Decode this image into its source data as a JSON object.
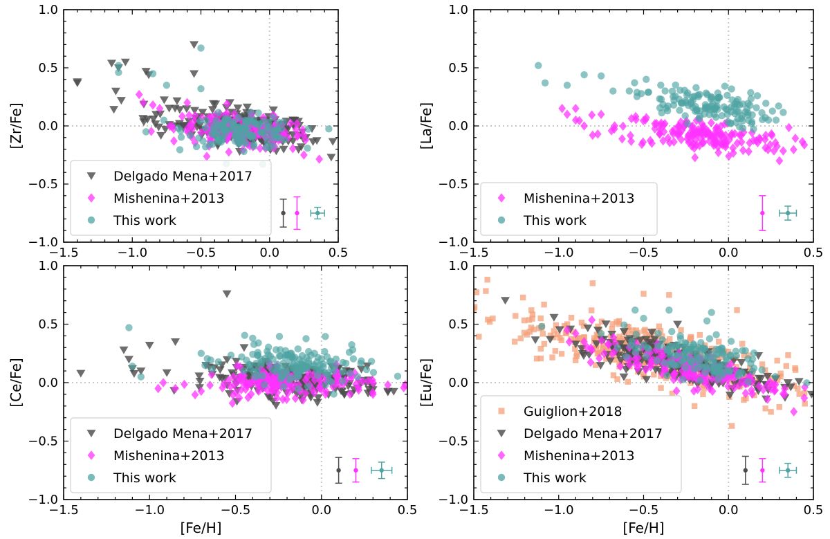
{
  "styles": {
    "guiglion": {
      "color": "#f4a07a",
      "marker": "square"
    },
    "delgado": {
      "color": "#4d4d4d",
      "marker": "triangle-down"
    },
    "mishenina": {
      "color": "#ff33ff",
      "marker": "diamond"
    },
    "thiswork": {
      "color": "#4fa3a3",
      "marker": "circle"
    }
  },
  "chart_data": [
    {
      "id": "zr",
      "type": "scatter",
      "ylabel": "[Zr/Fe]",
      "xlabel": "",
      "xlim": [
        -1.5,
        0.5
      ],
      "ylim": [
        -1.0,
        1.0
      ],
      "xticks": [
        -1.5,
        -1.0,
        -0.5,
        0.0,
        0.5
      ],
      "xtick_labels": [
        "−1.5",
        "−1.0",
        "−0.5",
        "0.0",
        "0.5"
      ],
      "yticks": [
        -1.0,
        -0.5,
        0.0,
        0.5,
        1.0
      ],
      "ytick_labels": [
        "−1.0",
        "−0.5",
        "0.0",
        "0.5",
        "1.0"
      ],
      "legend": {
        "position": "lower-left",
        "entries": [
          "Delgado Mena+2017",
          "Mishenina+2013",
          "This work"
        ],
        "keys": [
          "delgado",
          "mishenina",
          "thiswork"
        ]
      },
      "error_bars": [
        {
          "series": "delgado",
          "x": 0.1,
          "y": -0.75,
          "yerr": 0.12,
          "xerr": 0.0
        },
        {
          "series": "mishenina",
          "x": 0.2,
          "y": -0.75,
          "yerr": 0.14,
          "xerr": 0.0
        },
        {
          "series": "thiswork",
          "x": 0.35,
          "y": -0.75,
          "yerr": 0.05,
          "xerr": 0.05
        }
      ],
      "series": [
        {
          "name": "Delgado Mena+2017",
          "key": "delgado",
          "clusters": [
            {
              "n": 230,
              "cx": -0.15,
              "cy": -0.02,
              "sx": 0.22,
              "sy": 0.08,
              "slope": -0.15
            },
            {
              "n": 25,
              "cx": -0.7,
              "cy": 0.08,
              "sx": 0.15,
              "sy": 0.08,
              "slope": -0.1
            }
          ],
          "points": [
            [
              -1.4,
              0.38
            ],
            [
              -1.4,
              0.37
            ],
            [
              -1.15,
              0.54
            ],
            [
              -1.1,
              0.5
            ],
            [
              -1.05,
              0.55
            ],
            [
              -0.9,
              0.47
            ],
            [
              -0.55,
              0.7
            ],
            [
              -1.12,
              0.3
            ],
            [
              -1.08,
              0.22
            ],
            [
              -0.55,
              0.45
            ],
            [
              -0.88,
              0.44
            ]
          ]
        },
        {
          "name": "Mishenina+2013",
          "key": "mishenina",
          "clusters": [
            {
              "n": 170,
              "cx": -0.2,
              "cy": -0.05,
              "sx": 0.25,
              "sy": 0.07,
              "slope": -0.1
            }
          ],
          "points": [
            [
              -0.95,
              0.27
            ],
            [
              -0.92,
              0.2
            ],
            [
              -0.85,
              0.18
            ],
            [
              -0.8,
              0.15
            ],
            [
              -0.6,
              0.2
            ],
            [
              0.25,
              -0.25
            ]
          ]
        },
        {
          "name": "This work",
          "key": "thiswork",
          "clusters": [
            {
              "n": 130,
              "cx": -0.2,
              "cy": -0.05,
              "sx": 0.2,
              "sy": 0.07,
              "slope": -0.05
            }
          ],
          "points": [
            [
              -1.1,
              0.52
            ],
            [
              -1.1,
              0.46
            ],
            [
              -0.5,
              0.67
            ],
            [
              -0.85,
              0.45
            ],
            [
              -0.75,
              0.35
            ],
            [
              -0.5,
              0.32
            ],
            [
              -0.9,
              -0.05
            ],
            [
              -0.05,
              -0.33
            ]
          ]
        }
      ]
    },
    {
      "id": "la",
      "type": "scatter",
      "ylabel": "[La/Fe]",
      "xlabel": "",
      "xlim": [
        -1.5,
        0.5
      ],
      "ylim": [
        -1.0,
        1.0
      ],
      "xticks": [
        -1.5,
        -1.0,
        -0.5,
        0.0,
        0.5
      ],
      "xtick_labels": [
        "−1.5",
        "−1.0",
        "−0.5",
        "0.0",
        "0.5"
      ],
      "yticks": [
        -1.0,
        -0.5,
        0.0,
        0.5,
        1.0
      ],
      "ytick_labels": [
        "−1.0",
        "−0.5",
        "0.0",
        "0.5",
        "1.0"
      ],
      "legend": {
        "position": "lower-left",
        "entries": [
          "Mishenina+2013",
          "This work"
        ],
        "keys": [
          "mishenina",
          "thiswork"
        ]
      },
      "error_bars": [
        {
          "series": "mishenina",
          "x": 0.2,
          "y": -0.75,
          "yerr": 0.15,
          "xerr": 0.0
        },
        {
          "series": "thiswork",
          "x": 0.35,
          "y": -0.75,
          "yerr": 0.06,
          "xerr": 0.05
        }
      ],
      "series": [
        {
          "name": "Mishenina+2013",
          "key": "mishenina",
          "clusters": [
            {
              "n": 170,
              "cx": -0.15,
              "cy": -0.08,
              "sx": 0.25,
              "sy": 0.07,
              "slope": -0.15
            }
          ],
          "points": [
            [
              -0.98,
              0.15
            ],
            [
              -0.95,
              0.1
            ],
            [
              -0.9,
              0.05
            ],
            [
              -0.85,
              0.0
            ],
            [
              -0.8,
              -0.08
            ],
            [
              -0.9,
              0.15
            ],
            [
              -0.75,
              0.1
            ],
            [
              0.3,
              -0.3
            ]
          ]
        },
        {
          "name": "This work",
          "key": "thiswork",
          "clusters": [
            {
              "n": 140,
              "cx": -0.15,
              "cy": 0.18,
              "sx": 0.2,
              "sy": 0.08,
              "slope": -0.2
            }
          ],
          "points": [
            [
              -1.12,
              0.52
            ],
            [
              -1.08,
              0.37
            ],
            [
              -0.85,
              0.44
            ],
            [
              -0.75,
              0.43
            ],
            [
              -0.95,
              0.35
            ],
            [
              -0.68,
              0.3
            ],
            [
              0.28,
              0.05
            ]
          ]
        }
      ]
    },
    {
      "id": "ce",
      "type": "scatter",
      "ylabel": "[Ce/Fe]",
      "xlabel": "[Fe/H]",
      "xlim": [
        -1.5,
        0.5
      ],
      "ylim": [
        -1.0,
        1.0
      ],
      "xticks": [
        -1.5,
        -1.0,
        -0.5,
        0.0,
        0.5
      ],
      "xtick_labels": [
        "−1.5",
        "−1.0",
        "−0.5",
        "0.0",
        "0.5"
      ],
      "yticks": [
        -1.0,
        -0.5,
        0.0,
        0.5,
        1.0
      ],
      "ytick_labels": [
        "−1.0",
        "−0.5",
        "0.0",
        "0.5",
        "1.0"
      ],
      "legend": {
        "position": "lower-left",
        "entries": [
          "Delgado Mena+2017",
          "Mishenina+2013",
          "This work"
        ],
        "keys": [
          "delgado",
          "mishenina",
          "thiswork"
        ]
      },
      "error_bars": [
        {
          "series": "delgado",
          "x": 0.1,
          "y": -0.75,
          "yerr": 0.11,
          "xerr": 0.0
        },
        {
          "series": "mishenina",
          "x": 0.2,
          "y": -0.75,
          "yerr": 0.1,
          "xerr": 0.0
        },
        {
          "series": "thiswork",
          "x": 0.35,
          "y": -0.75,
          "yerr": 0.07,
          "xerr": 0.06
        }
      ],
      "series": [
        {
          "name": "Delgado Mena+2017",
          "key": "delgado",
          "clusters": [
            {
              "n": 230,
              "cx": -0.15,
              "cy": 0.02,
              "sx": 0.25,
              "sy": 0.07,
              "slope": -0.05
            }
          ],
          "points": [
            [
              -1.4,
              0.08
            ],
            [
              -1.15,
              0.28
            ],
            [
              -1.12,
              0.2
            ],
            [
              -1.1,
              0.12
            ],
            [
              -1.05,
              0.1
            ],
            [
              -1.0,
              0.32
            ],
            [
              -0.85,
              0.35
            ],
            [
              -0.55,
              0.76
            ],
            [
              -0.45,
              0.3
            ]
          ]
        },
        {
          "name": "Mishenina+2013",
          "key": "mishenina",
          "clusters": [
            {
              "n": 170,
              "cx": -0.2,
              "cy": 0.0,
              "sx": 0.25,
              "sy": 0.06,
              "slope": 0.0
            }
          ],
          "points": [
            [
              -0.95,
              -0.05
            ],
            [
              -0.92,
              0.0
            ],
            [
              -0.85,
              -0.05
            ],
            [
              0.3,
              -0.1
            ]
          ]
        },
        {
          "name": "This work",
          "key": "thiswork",
          "clusters": [
            {
              "n": 150,
              "cx": -0.15,
              "cy": 0.15,
              "sx": 0.2,
              "sy": 0.09,
              "slope": -0.1
            }
          ],
          "points": [
            [
              -1.12,
              0.47
            ],
            [
              -1.1,
              0.14
            ],
            [
              -1.05,
              0.05
            ],
            [
              -0.4,
              0.38
            ],
            [
              -0.7,
              0.25
            ]
          ]
        }
      ]
    },
    {
      "id": "eu",
      "type": "scatter",
      "ylabel": "[Eu/Fe]",
      "xlabel": "[Fe/H]",
      "xlim": [
        -1.5,
        0.5
      ],
      "ylim": [
        -1.0,
        1.0
      ],
      "xticks": [
        -1.5,
        -1.0,
        -0.5,
        0.0,
        0.5
      ],
      "xtick_labels": [
        "−1.5",
        "−1.0",
        "−0.5",
        "0.0",
        "0.5"
      ],
      "yticks": [
        -1.0,
        -0.5,
        0.0,
        0.5,
        1.0
      ],
      "ytick_labels": [
        "−1.0",
        "−0.5",
        "0.0",
        "0.5",
        "1.0"
      ],
      "legend": {
        "position": "lower-left",
        "entries": [
          "Guiglion+2018",
          "Delgado Mena+2017",
          "Mishenina+2013",
          "This work"
        ],
        "keys": [
          "guiglion",
          "delgado",
          "mishenina",
          "thiswork"
        ]
      },
      "error_bars": [
        {
          "series": "delgado",
          "x": 0.1,
          "y": -0.75,
          "yerr": 0.12,
          "xerr": 0.0
        },
        {
          "series": "mishenina",
          "x": 0.2,
          "y": -0.75,
          "yerr": 0.1,
          "xerr": 0.0
        },
        {
          "series": "thiswork",
          "x": 0.35,
          "y": -0.75,
          "yerr": 0.06,
          "xerr": 0.05
        }
      ],
      "series": [
        {
          "name": "Guiglion+2018",
          "key": "guiglion",
          "clusters": [
            {
              "n": 380,
              "cx": -0.45,
              "cy": 0.25,
              "sx": 0.4,
              "sy": 0.12,
              "slope": -0.32
            }
          ],
          "points": [
            [
              -1.5,
              0.63
            ],
            [
              -1.42,
              0.88
            ],
            [
              -0.8,
              0.85
            ],
            [
              -0.5,
              0.76
            ],
            [
              -0.35,
              0.75
            ],
            [
              0.05,
              0.62
            ],
            [
              0.45,
              -0.18
            ],
            [
              0.25,
              -0.25
            ],
            [
              0.02,
              -0.37
            ],
            [
              -0.2,
              -0.2
            ],
            [
              -0.15,
              -0.1
            ]
          ]
        },
        {
          "name": "Delgado Mena+2017",
          "key": "delgado",
          "clusters": [
            {
              "n": 230,
              "cx": -0.3,
              "cy": 0.18,
              "sx": 0.3,
              "sy": 0.08,
              "slope": -0.35
            }
          ],
          "points": [
            [
              -1.05,
              0.37
            ],
            [
              -0.9,
              0.33
            ],
            [
              -0.3,
              0.5
            ],
            [
              0.35,
              0.0
            ]
          ]
        },
        {
          "name": "Mishenina+2013",
          "key": "mishenina",
          "clusters": [
            {
              "n": 170,
              "cx": -0.25,
              "cy": 0.12,
              "sx": 0.28,
              "sy": 0.07,
              "slope": -0.3
            }
          ],
          "points": [
            [
              -0.9,
              0.42
            ],
            [
              -0.85,
              0.35
            ],
            [
              -0.95,
              0.45
            ]
          ]
        },
        {
          "name": "This work",
          "key": "thiswork",
          "clusters": [
            {
              "n": 140,
              "cx": -0.2,
              "cy": 0.22,
              "sx": 0.2,
              "sy": 0.09,
              "slope": -0.2
            }
          ],
          "points": [
            [
              -1.1,
              0.48
            ],
            [
              -0.55,
              0.62
            ],
            [
              -0.5,
              0.55
            ],
            [
              -0.35,
              0.62
            ],
            [
              -0.1,
              0.6
            ],
            [
              -0.75,
              0.42
            ]
          ]
        }
      ]
    }
  ]
}
